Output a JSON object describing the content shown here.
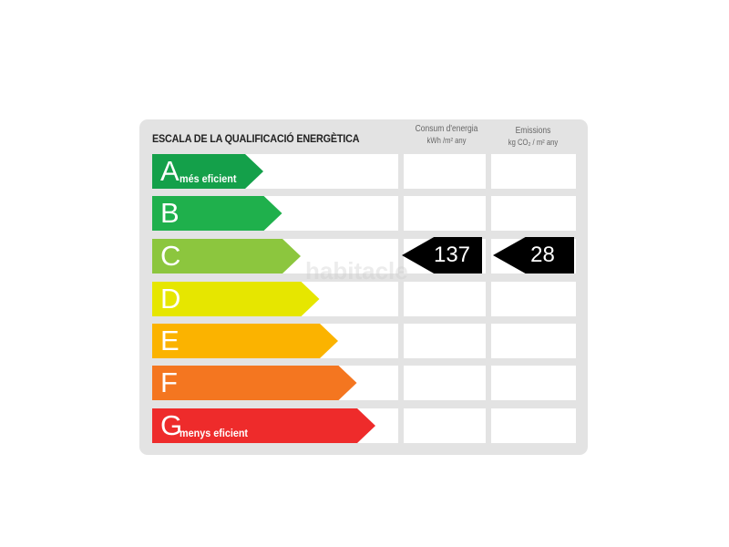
{
  "title": "ESCALA DE LA QUALIFICACIÓ ENERGÈTICA",
  "columns": {
    "energy": {
      "line1": "Consum d'energia",
      "line2": "kWh /m² any"
    },
    "emissions": {
      "line1": "Emissions",
      "line2": "kg CO₂ / m² any"
    }
  },
  "ratings": [
    {
      "letter": "A",
      "label": "més eficient",
      "color": "#14a04a"
    },
    {
      "letter": "B",
      "label": "",
      "color": "#1fb04c"
    },
    {
      "letter": "C",
      "label": "",
      "color": "#8cc63e"
    },
    {
      "letter": "D",
      "label": "",
      "color": "#e6e600"
    },
    {
      "letter": "E",
      "label": "",
      "color": "#fbb300"
    },
    {
      "letter": "F",
      "label": "",
      "color": "#f47620"
    },
    {
      "letter": "G",
      "label": "menys eficient",
      "color": "#ee2b2b"
    }
  ],
  "result": {
    "rating": "C",
    "energy_value": "137",
    "emissions_value": "28"
  },
  "watermark": "habitacle"
}
